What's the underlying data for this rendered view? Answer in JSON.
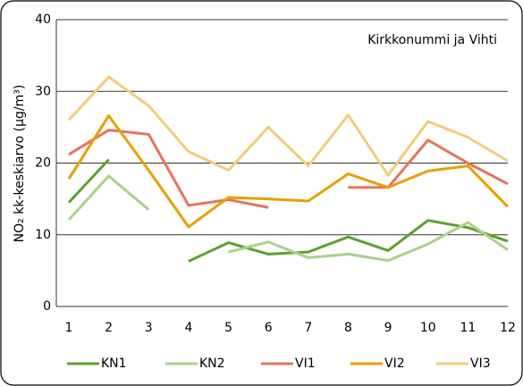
{
  "chart_data": {
    "type": "line",
    "ylabel": "NO₂ kk-keskiarvo (µg/m³)",
    "annotation": "Kirkkonummi ja Vihti",
    "categories": [
      "1",
      "2",
      "3",
      "4",
      "5",
      "6",
      "7",
      "8",
      "9",
      "10",
      "11",
      "12"
    ],
    "ylim": [
      0,
      40
    ],
    "yticks": [
      0,
      10,
      20,
      30,
      40
    ],
    "grid": true,
    "legend": "bottom",
    "series": [
      {
        "name": "KN1",
        "color": "#5ba12d",
        "values": [
          14.5,
          20.5,
          null,
          6.3,
          8.9,
          7.3,
          7.6,
          9.7,
          7.8,
          12.0,
          11.0,
          9.1
        ]
      },
      {
        "name": "KN2",
        "color": "#a9d18e",
        "values": [
          12.1,
          18.2,
          13.5,
          null,
          7.6,
          9.0,
          6.8,
          7.3,
          6.4,
          8.7,
          11.7,
          7.9
        ]
      },
      {
        "name": "VI1",
        "color": "#e8735a",
        "values": [
          21.2,
          24.6,
          24.0,
          14.1,
          14.9,
          13.8,
          null,
          16.6,
          16.6,
          23.2,
          20.0,
          17.1
        ]
      },
      {
        "name": "VI2",
        "color": "#e6a000",
        "values": [
          17.8,
          26.6,
          19.0,
          11.1,
          15.2,
          15.0,
          14.7,
          18.5,
          16.6,
          18.9,
          19.6,
          13.9
        ]
      },
      {
        "name": "VI3",
        "color": "#f5cb7a",
        "values": [
          26.0,
          32.0,
          28.0,
          21.6,
          19.0,
          25.0,
          19.6,
          26.7,
          18.3,
          25.8,
          23.6,
          20.3
        ]
      }
    ]
  }
}
